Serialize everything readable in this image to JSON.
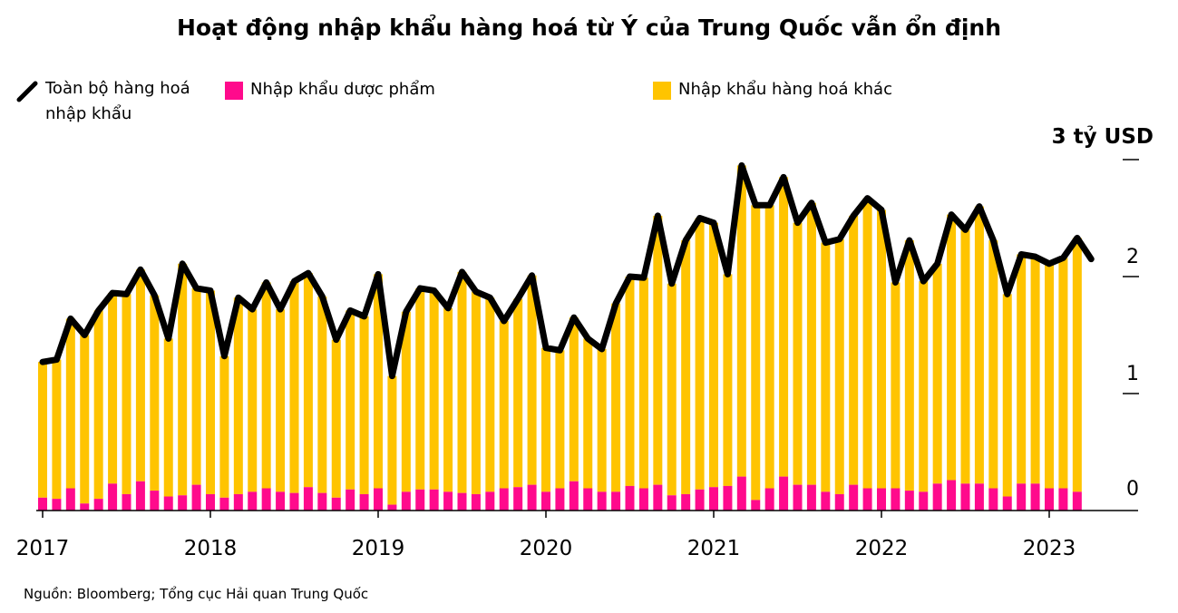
{
  "chart_data": {
    "type": "bar",
    "title": "Hoạt động nhập khẩu hàng hoá từ Ý của Trung Quốc vẫn ổn định",
    "ylabel": "3 tỷ USD",
    "xlabel": "",
    "ylim": [
      0,
      3
    ],
    "yticks": [
      "0",
      "1",
      "2",
      "3 tỷ USD"
    ],
    "xtick_labels": [
      "2017",
      "2018",
      "2019",
      "2020",
      "2021",
      "2022",
      "2023"
    ],
    "grid": false,
    "legend_placement": "top",
    "frequency": "monthly",
    "start": "2017-01",
    "colors": {
      "total": "#000000",
      "pharma": "#FF0A8C",
      "other": "#FFC400"
    },
    "series": [
      {
        "name": "Toàn bộ hàng hoá nhập khẩu",
        "type": "line",
        "values": [
          1.27,
          1.29,
          1.64,
          1.5,
          1.71,
          1.86,
          1.85,
          2.06,
          1.84,
          1.47,
          2.11,
          1.9,
          1.88,
          1.32,
          1.82,
          1.72,
          1.95,
          1.72,
          1.96,
          2.03,
          1.83,
          1.46,
          1.71,
          1.66,
          2.02,
          1.15,
          1.7,
          1.9,
          1.88,
          1.73,
          2.04,
          1.87,
          1.82,
          1.62,
          1.81,
          2.01,
          1.39,
          1.37,
          1.65,
          1.47,
          1.38,
          1.77,
          2.0,
          1.99,
          2.52,
          1.94,
          2.31,
          2.5,
          2.46,
          2.02,
          2.95,
          2.61,
          2.61,
          2.85,
          2.46,
          2.63,
          2.29,
          2.32,
          2.52,
          2.67,
          2.57,
          1.95,
          2.31,
          1.96,
          2.11,
          2.53,
          2.4,
          2.6,
          2.31,
          1.85,
          2.19,
          2.17,
          2.11,
          2.16,
          2.33,
          2.15
        ]
      },
      {
        "name": "Nhập khẩu dược phẩm",
        "type": "bar",
        "values": [
          0.11,
          0.1,
          0.19,
          0.06,
          0.1,
          0.23,
          0.14,
          0.25,
          0.17,
          0.12,
          0.13,
          0.22,
          0.14,
          0.11,
          0.14,
          0.16,
          0.19,
          0.16,
          0.15,
          0.2,
          0.15,
          0.11,
          0.18,
          0.14,
          0.19,
          0.05,
          0.16,
          0.18,
          0.18,
          0.16,
          0.15,
          0.14,
          0.16,
          0.19,
          0.2,
          0.22,
          0.16,
          0.19,
          0.25,
          0.19,
          0.16,
          0.16,
          0.21,
          0.19,
          0.22,
          0.13,
          0.14,
          0.18,
          0.2,
          0.21,
          0.29,
          0.09,
          0.19,
          0.29,
          0.22,
          0.22,
          0.16,
          0.14,
          0.22,
          0.19,
          0.19,
          0.19,
          0.17,
          0.16,
          0.23,
          0.26,
          0.23,
          0.23,
          0.19,
          0.12,
          0.23,
          0.23,
          0.19,
          0.19,
          0.16
        ]
      },
      {
        "name": "Nhập khẩu hàng hoá khác",
        "type": "bar",
        "stacked": true,
        "values": [
          1.16,
          1.19,
          1.45,
          1.44,
          1.61,
          1.63,
          1.71,
          1.81,
          1.67,
          1.35,
          1.98,
          1.68,
          1.74,
          1.21,
          1.68,
          1.56,
          1.76,
          1.56,
          1.81,
          1.83,
          1.68,
          1.35,
          1.53,
          1.52,
          1.83,
          1.1,
          1.54,
          1.72,
          1.7,
          1.57,
          1.89,
          1.73,
          1.66,
          1.43,
          1.61,
          1.79,
          1.23,
          1.18,
          1.4,
          1.28,
          1.22,
          1.61,
          1.79,
          1.8,
          2.3,
          1.81,
          2.17,
          2.32,
          2.26,
          1.81,
          2.66,
          2.52,
          2.42,
          2.56,
          2.24,
          2.41,
          2.13,
          2.18,
          2.3,
          2.48,
          2.38,
          1.76,
          2.14,
          1.8,
          1.88,
          2.27,
          2.17,
          2.37,
          2.12,
          1.73,
          1.96,
          1.94,
          1.92,
          1.97,
          2.17
        ]
      }
    ]
  },
  "legend": {
    "total_line1": "Toàn bộ hàng hoá",
    "total_line2": "nhập khẩu",
    "pharma": "Nhập khẩu dược phẩm",
    "other": "Nhập khẩu hàng hoá khác"
  },
  "source": "Nguồn: Bloomberg; Tổng cục Hải quan Trung Quốc"
}
